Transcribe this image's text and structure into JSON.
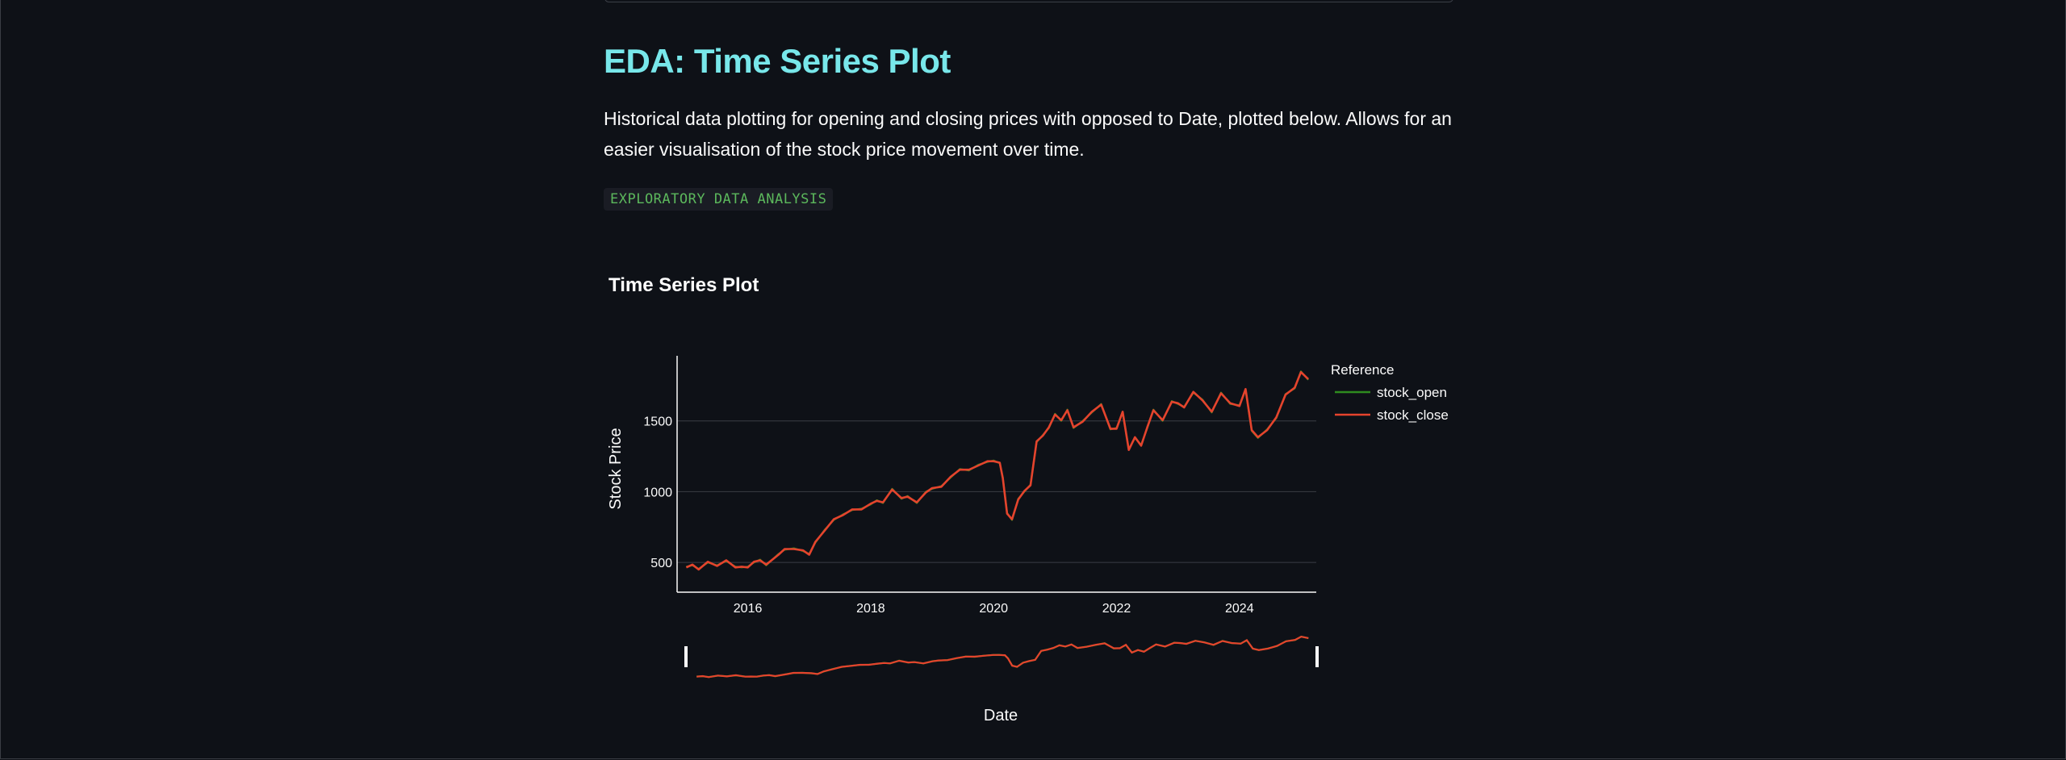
{
  "page": {
    "title": "EDA: Time Series Plot",
    "description": "Historical data plotting for opening and closing prices with opposed to Date, plotted below. Allows for an easier visualisation of the stock price movement over time.",
    "badge": "EXPLORATORY DATA ANALYSIS"
  },
  "colors": {
    "background": "#0e1117",
    "title": "#78e7ea",
    "badge_text": "#5cb85c",
    "stock_open": "#2e8b1f",
    "stock_close": "#e5432d"
  },
  "chart_data": {
    "type": "line",
    "title": "Time Series Plot",
    "xlabel": "Date",
    "ylabel": "Stock Price",
    "xlim": [
      2014.85,
      2025.25
    ],
    "ylim": [
      290,
      1960
    ],
    "x_ticks": [
      2016,
      2018,
      2020,
      2022,
      2024
    ],
    "y_ticks": [
      500,
      1000,
      1500
    ],
    "grid": true,
    "legend_title": "Reference",
    "legend_position": "right",
    "range_slider": true,
    "series": [
      {
        "name": "stock_open",
        "color": "#2e8b1f",
        "x": [
          2015.0,
          2015.1,
          2015.2,
          2015.35,
          2015.5,
          2015.65,
          2015.8,
          2015.9,
          2016.0,
          2016.1,
          2016.2,
          2016.3,
          2016.5,
          2016.6,
          2016.75,
          2016.9,
          2017.0,
          2017.1,
          2017.25,
          2017.4,
          2017.55,
          2017.7,
          2017.85,
          2018.0,
          2018.1,
          2018.2,
          2018.35,
          2018.5,
          2018.6,
          2018.75,
          2018.9,
          2019.0,
          2019.15,
          2019.3,
          2019.45,
          2019.6,
          2019.75,
          2019.9,
          2020.0,
          2020.1,
          2020.15,
          2020.22,
          2020.3,
          2020.4,
          2020.5,
          2020.6,
          2020.7,
          2020.8,
          2020.9,
          2021.0,
          2021.1,
          2021.2,
          2021.3,
          2021.45,
          2021.6,
          2021.75,
          2021.9,
          2022.0,
          2022.1,
          2022.2,
          2022.3,
          2022.4,
          2022.5,
          2022.6,
          2022.75,
          2022.9,
          2023.0,
          2023.1,
          2023.25,
          2023.4,
          2023.55,
          2023.7,
          2023.85,
          2024.0,
          2024.1,
          2024.2,
          2024.3,
          2024.45,
          2024.6,
          2024.75,
          2024.9,
          2025.0,
          2025.12
        ],
        "y": [
          470,
          480,
          455,
          500,
          480,
          510,
          470,
          465,
          470,
          500,
          520,
          480,
          560,
          590,
          600,
          580,
          560,
          640,
          730,
          800,
          840,
          870,
          880,
          910,
          940,
          920,
          1020,
          950,
          970,
          920,
          1000,
          1020,
          1040,
          1100,
          1160,
          1150,
          1190,
          1210,
          1220,
          1200,
          1100,
          850,
          800,
          950,
          1000,
          1050,
          1350,
          1400,
          1450,
          1550,
          1500,
          1580,
          1450,
          1500,
          1560,
          1620,
          1440,
          1450,
          1560,
          1300,
          1380,
          1330,
          1450,
          1580,
          1500,
          1640,
          1620,
          1600,
          1700,
          1650,
          1560,
          1700,
          1620,
          1610,
          1720,
          1430,
          1380,
          1440,
          1520,
          1690,
          1730,
          1850,
          1790
        ]
      },
      {
        "name": "stock_close",
        "color": "#e5432d",
        "x": [
          2015.0,
          2015.1,
          2015.2,
          2015.35,
          2015.5,
          2015.65,
          2015.8,
          2015.9,
          2016.0,
          2016.1,
          2016.2,
          2016.3,
          2016.5,
          2016.6,
          2016.75,
          2016.9,
          2017.0,
          2017.1,
          2017.25,
          2017.4,
          2017.55,
          2017.7,
          2017.85,
          2018.0,
          2018.1,
          2018.2,
          2018.35,
          2018.5,
          2018.6,
          2018.75,
          2018.9,
          2019.0,
          2019.15,
          2019.3,
          2019.45,
          2019.6,
          2019.75,
          2019.9,
          2020.0,
          2020.1,
          2020.15,
          2020.22,
          2020.3,
          2020.4,
          2020.5,
          2020.6,
          2020.7,
          2020.8,
          2020.9,
          2021.0,
          2021.1,
          2021.2,
          2021.3,
          2021.45,
          2021.6,
          2021.75,
          2021.9,
          2022.0,
          2022.1,
          2022.2,
          2022.3,
          2022.4,
          2022.5,
          2022.6,
          2022.75,
          2022.9,
          2023.0,
          2023.1,
          2023.25,
          2023.4,
          2023.55,
          2023.7,
          2023.85,
          2024.0,
          2024.1,
          2024.2,
          2024.3,
          2024.45,
          2024.6,
          2024.75,
          2024.9,
          2025.0,
          2025.12
        ],
        "y": [
          465,
          485,
          450,
          505,
          475,
          515,
          465,
          470,
          465,
          505,
          515,
          485,
          555,
          595,
          595,
          585,
          555,
          645,
          725,
          805,
          835,
          875,
          875,
          915,
          935,
          925,
          1015,
          955,
          965,
          925,
          995,
          1025,
          1035,
          1105,
          1155,
          1155,
          1185,
          1215,
          1215,
          1205,
          1095,
          845,
          805,
          945,
          1005,
          1045,
          1355,
          1395,
          1455,
          1545,
          1505,
          1575,
          1455,
          1495,
          1565,
          1615,
          1445,
          1445,
          1565,
          1295,
          1385,
          1325,
          1455,
          1575,
          1505,
          1635,
          1625,
          1595,
          1705,
          1645,
          1565,
          1695,
          1625,
          1605,
          1725,
          1435,
          1385,
          1435,
          1525,
          1685,
          1735,
          1845,
          1795
        ]
      }
    ]
  }
}
